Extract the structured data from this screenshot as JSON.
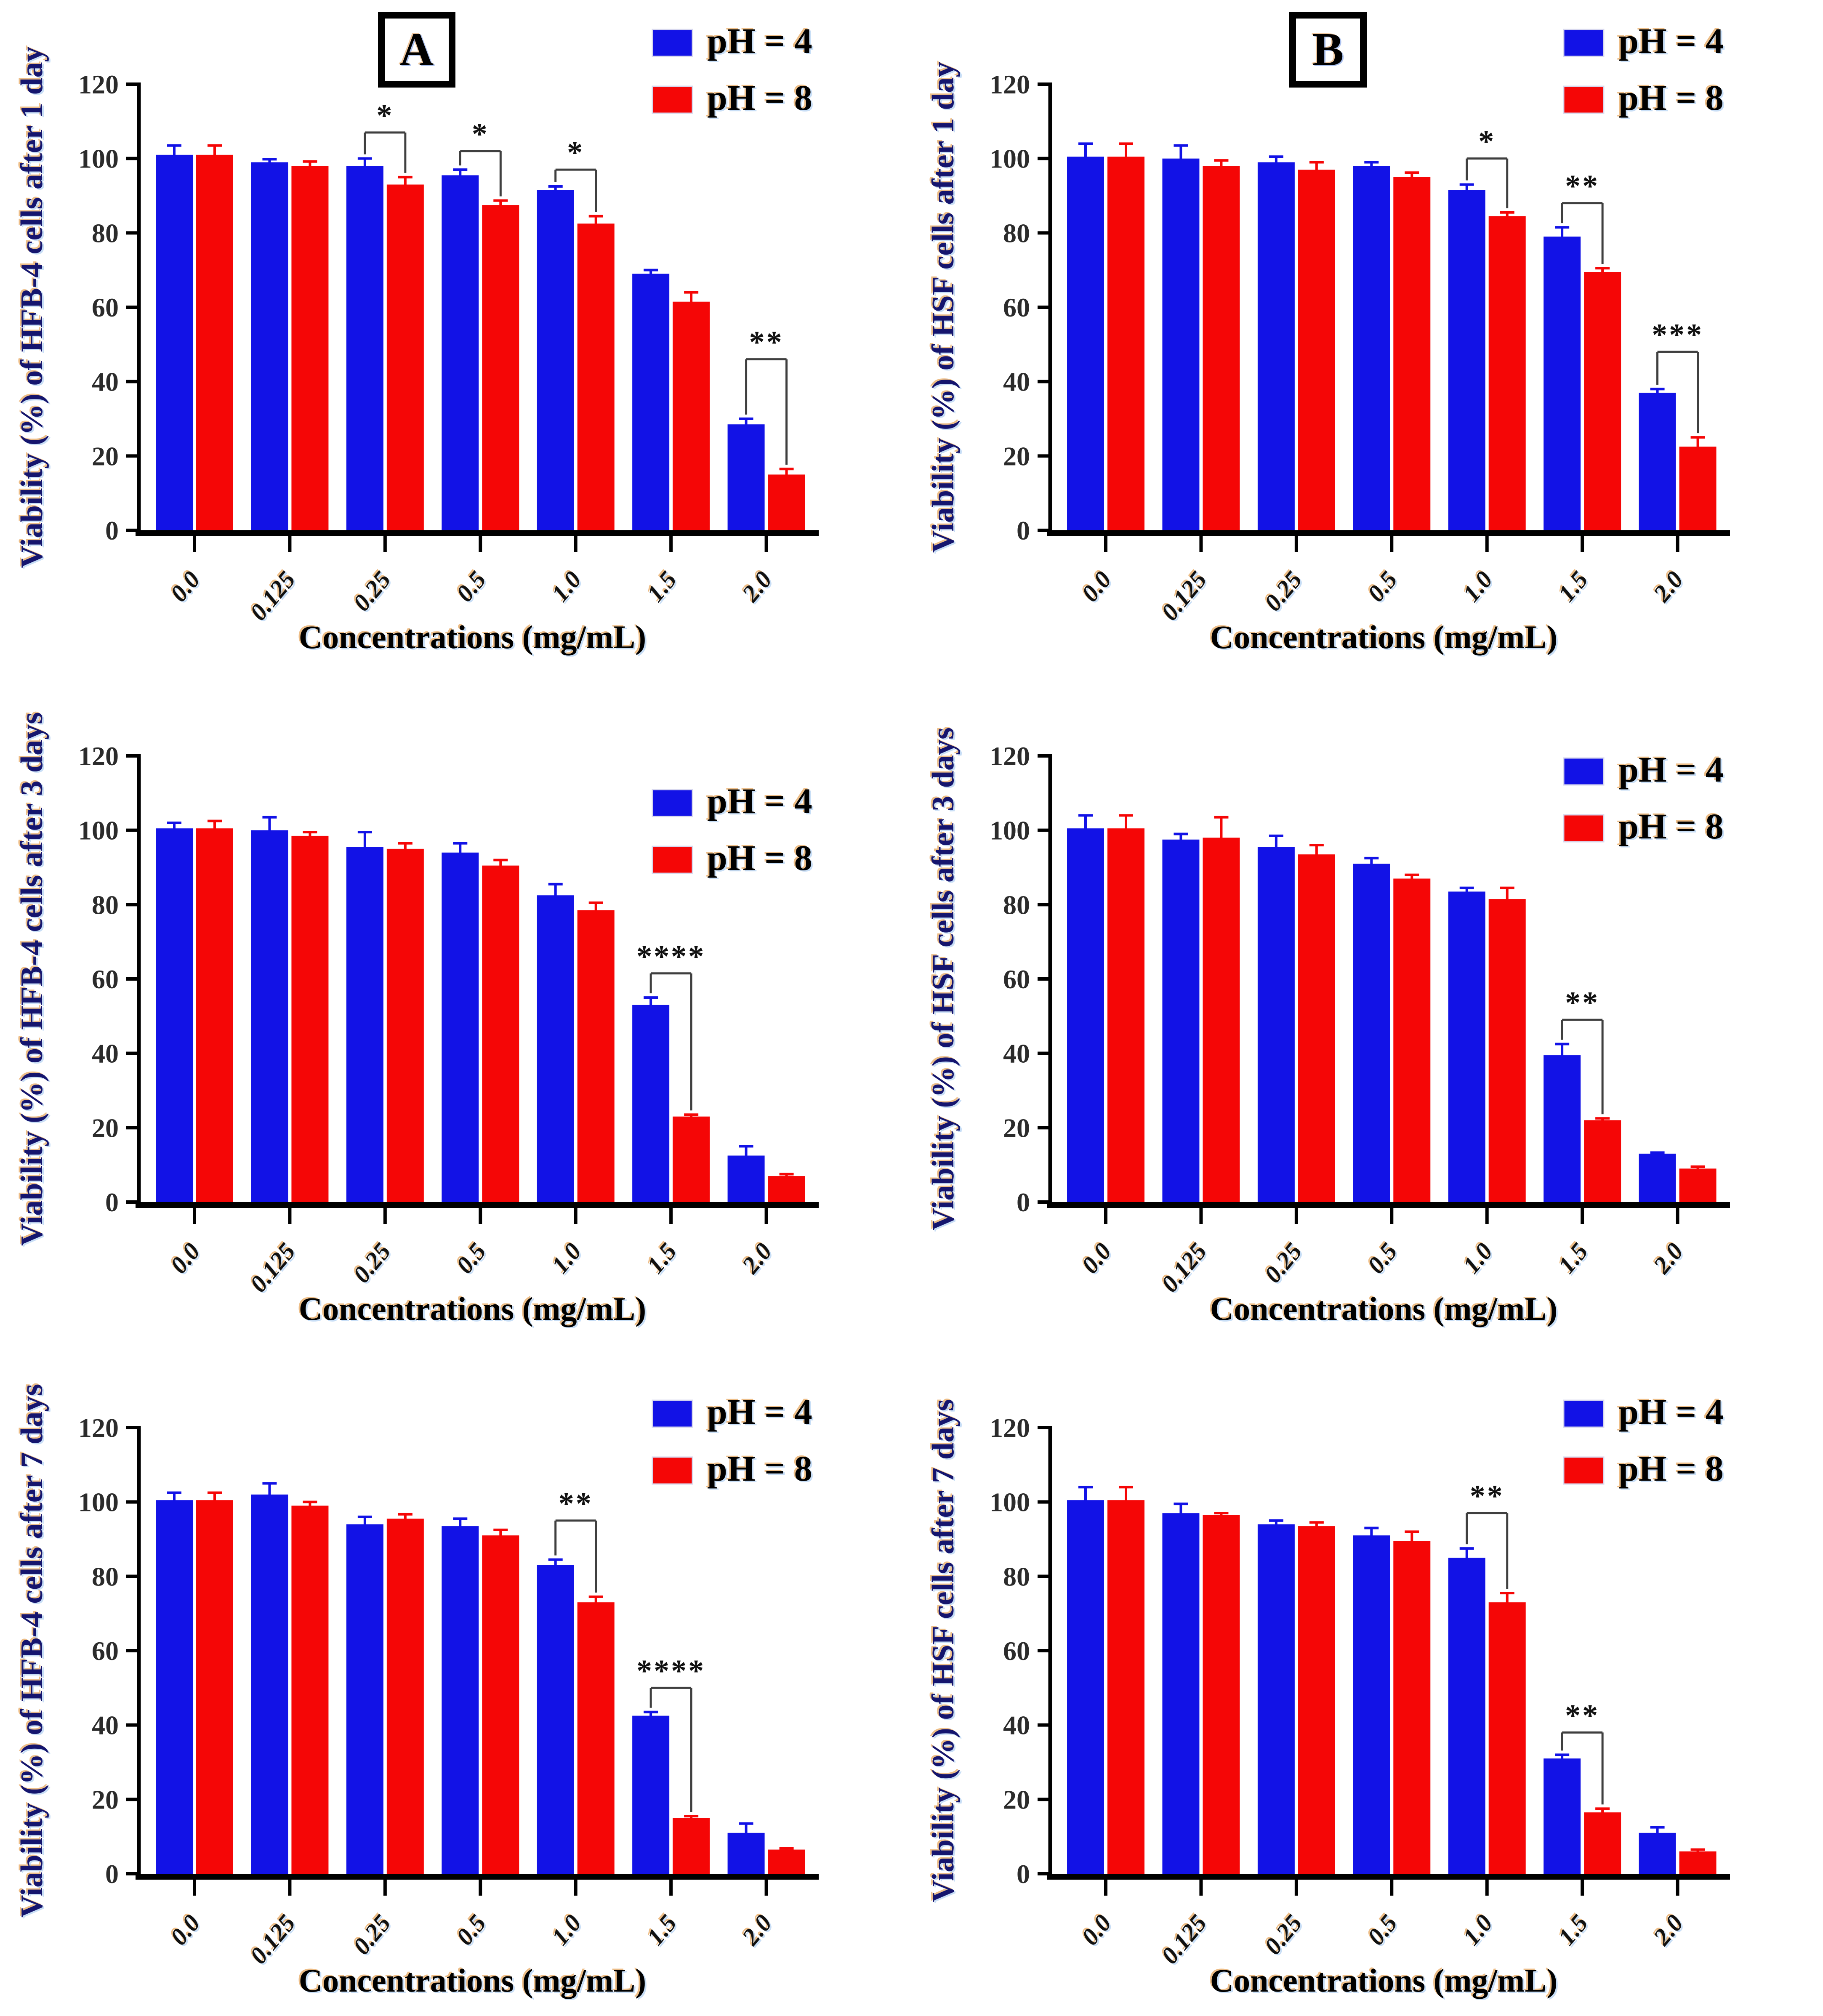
{
  "figure": {
    "background": "#ffffff",
    "panels": [
      {
        "label": "A"
      },
      {
        "label": "B"
      }
    ]
  },
  "colors": {
    "ph4": "#1212e6",
    "ph8": "#f50606",
    "axis": "#000000",
    "bracket": "#3f3f3f",
    "tick_text": "#2b2b2b",
    "ylabel_fill": "#15156e",
    "shadow_orange": "#e08a28",
    "shadow_blue": "#9cc4f0"
  },
  "chart_data": [
    {
      "id": "hfb4-1day",
      "panel": "A",
      "type": "bar",
      "ylabel": "Viability (%) of HFB-4 cells after 1 day",
      "xlabel": "Concentrations (mg/mL)",
      "categories": [
        "0.0",
        "0.125",
        "0.25",
        "0.5",
        "1.0",
        "1.5",
        "2.0"
      ],
      "ylim": [
        0,
        120
      ],
      "yticks": [
        0,
        20,
        40,
        60,
        80,
        100,
        120
      ],
      "legend_position": "top-right",
      "legend_y": 70,
      "series": [
        {
          "name": "pH = 4",
          "color_key": "ph4",
          "values": [
            101,
            99,
            98,
            95.5,
            91.5,
            69,
            28.5
          ],
          "errors": [
            2.5,
            0.8,
            2,
            1.5,
            1,
            1,
            1.5
          ]
        },
        {
          "name": "pH = 8",
          "color_key": "ph8",
          "values": [
            101,
            98,
            93,
            87.5,
            82.5,
            61.5,
            15
          ],
          "errors": [
            2.5,
            1.2,
            2,
            1.2,
            2,
            2.5,
            1.5
          ]
        }
      ],
      "significance": [
        {
          "category": "0.25",
          "label": "*",
          "bracket_y": 107
        },
        {
          "category": "0.5",
          "label": "*",
          "bracket_y": 102
        },
        {
          "category": "1.0",
          "label": "*",
          "bracket_y": 97
        },
        {
          "category": "2.0",
          "label": "**",
          "bracket_y": 46
        }
      ]
    },
    {
      "id": "hsf-1day",
      "panel": "B",
      "type": "bar",
      "ylabel": "Viability (%) of HSF cells after 1 day",
      "xlabel": "Concentrations (mg/mL)",
      "categories": [
        "0.0",
        "0.125",
        "0.25",
        "0.5",
        "1.0",
        "1.5",
        "2.0"
      ],
      "ylim": [
        0,
        120
      ],
      "yticks": [
        0,
        20,
        40,
        60,
        80,
        100,
        120
      ],
      "legend_position": "top-right",
      "legend_y": 70,
      "series": [
        {
          "name": "pH = 4",
          "color_key": "ph4",
          "values": [
            100.5,
            100,
            99,
            98,
            91.5,
            79,
            37
          ],
          "errors": [
            3.5,
            3.5,
            1.5,
            1,
            1.5,
            2.5,
            1
          ]
        },
        {
          "name": "pH = 8",
          "color_key": "ph8",
          "values": [
            100.5,
            98,
            97,
            95,
            84.5,
            69.5,
            22.5
          ],
          "errors": [
            3.5,
            1.5,
            2,
            1.2,
            1,
            1,
            2.5
          ]
        }
      ],
      "significance": [
        {
          "category": "1.0",
          "label": "*",
          "bracket_y": 100
        },
        {
          "category": "1.5",
          "label": "**",
          "bracket_y": 88
        },
        {
          "category": "2.0",
          "label": "***",
          "bracket_y": 48
        }
      ]
    },
    {
      "id": "hfb4-3days",
      "panel": "A",
      "type": "bar",
      "ylabel": "Viability (%) of HFB-4 cells after 3 days",
      "xlabel": "Concentrations (mg/mL)",
      "categories": [
        "0.0",
        "0.125",
        "0.25",
        "0.5",
        "1.0",
        "1.5",
        "2.0"
      ],
      "ylim": [
        0,
        120
      ],
      "yticks": [
        0,
        20,
        40,
        60,
        80,
        100,
        120
      ],
      "legend_position": "top-right",
      "legend_y": 280,
      "series": [
        {
          "name": "pH = 4",
          "color_key": "ph4",
          "values": [
            100.5,
            100,
            95.5,
            94,
            82.5,
            53,
            12.5
          ],
          "errors": [
            1.5,
            3.5,
            4,
            2.5,
            3,
            2,
            2.5
          ]
        },
        {
          "name": "pH = 8",
          "color_key": "ph8",
          "values": [
            100.5,
            98.5,
            95,
            90.5,
            78.5,
            23,
            7
          ],
          "errors": [
            2,
            1,
            1.5,
            1.5,
            2,
            0.5,
            0.5
          ]
        }
      ],
      "significance": [
        {
          "category": "1.5",
          "label": "****",
          "bracket_y": 61.5
        }
      ]
    },
    {
      "id": "hsf-3days",
      "panel": "B",
      "type": "bar",
      "ylabel": "Viability (%) of HSF cells after 3 days",
      "xlabel": "Concentrations (mg/mL)",
      "categories": [
        "0.0",
        "0.125",
        "0.25",
        "0.5",
        "1.0",
        "1.5",
        "2.0"
      ],
      "ylim": [
        0,
        120
      ],
      "yticks": [
        0,
        20,
        40,
        60,
        80,
        100,
        120
      ],
      "legend_position": "top-right",
      "legend_y": 205,
      "series": [
        {
          "name": "pH = 4",
          "color_key": "ph4",
          "values": [
            100.5,
            97.5,
            95.5,
            91,
            83.5,
            39.5,
            13
          ],
          "errors": [
            3.5,
            1.5,
            3,
            1.5,
            1,
            3,
            0.3
          ]
        },
        {
          "name": "pH = 8",
          "color_key": "ph8",
          "values": [
            100.5,
            98,
            93.5,
            87,
            81.5,
            22,
            9
          ],
          "errors": [
            3.5,
            5.5,
            2.5,
            1,
            3,
            0.5,
            0.5
          ]
        }
      ],
      "significance": [
        {
          "category": "1.5",
          "label": "**",
          "bracket_y": 49
        }
      ]
    },
    {
      "id": "hfb4-7days",
      "panel": "A",
      "type": "bar",
      "ylabel": "Viability (%) of HFB-4 cells after 7 days",
      "xlabel": "Concentrations (mg/mL)",
      "categories": [
        "0.0",
        "0.125",
        "0.25",
        "0.5",
        "1.0",
        "1.5",
        "2.0"
      ],
      "ylim": [
        0,
        120
      ],
      "yticks": [
        0,
        20,
        40,
        60,
        80,
        100,
        120
      ],
      "legend_position": "top-right",
      "legend_y": 135,
      "series": [
        {
          "name": "pH = 4",
          "color_key": "ph4",
          "values": [
            100.5,
            102,
            94,
            93.5,
            83,
            42.5,
            11
          ],
          "errors": [
            2,
            3,
            2,
            2,
            1.5,
            1,
            2.5
          ]
        },
        {
          "name": "pH = 8",
          "color_key": "ph8",
          "values": [
            100.5,
            99,
            95.5,
            91,
            73,
            15,
            6.5
          ],
          "errors": [
            2,
            1,
            1.2,
            1.5,
            1.5,
            0.5,
            0.3
          ]
        }
      ],
      "significance": [
        {
          "category": "1.0",
          "label": "**",
          "bracket_y": 95
        },
        {
          "category": "1.5",
          "label": "****",
          "bracket_y": 50
        }
      ]
    },
    {
      "id": "hsf-7days",
      "panel": "B",
      "type": "bar",
      "ylabel": "Viability (%) of HSF cells after 7 days",
      "xlabel": "Concentrations (mg/mL)",
      "categories": [
        "0.0",
        "0.125",
        "0.25",
        "0.5",
        "1.0",
        "1.5",
        "2.0"
      ],
      "ylim": [
        0,
        120
      ],
      "yticks": [
        0,
        20,
        40,
        60,
        80,
        100,
        120
      ],
      "legend_position": "top-right",
      "legend_y": 135,
      "series": [
        {
          "name": "pH = 4",
          "color_key": "ph4",
          "values": [
            100.5,
            97,
            94,
            91,
            85,
            31,
            11
          ],
          "errors": [
            3.5,
            2.5,
            1,
            2,
            2.5,
            1,
            1.5
          ]
        },
        {
          "name": "pH = 8",
          "color_key": "ph8",
          "values": [
            100.5,
            96.5,
            93.5,
            89.5,
            73,
            16.5,
            6
          ],
          "errors": [
            3.5,
            0.5,
            1,
            2.5,
            2.5,
            1,
            0.5
          ]
        }
      ],
      "significance": [
        {
          "category": "1.0",
          "label": "**",
          "bracket_y": 97
        },
        {
          "category": "1.5",
          "label": "**",
          "bracket_y": 38
        }
      ]
    }
  ]
}
